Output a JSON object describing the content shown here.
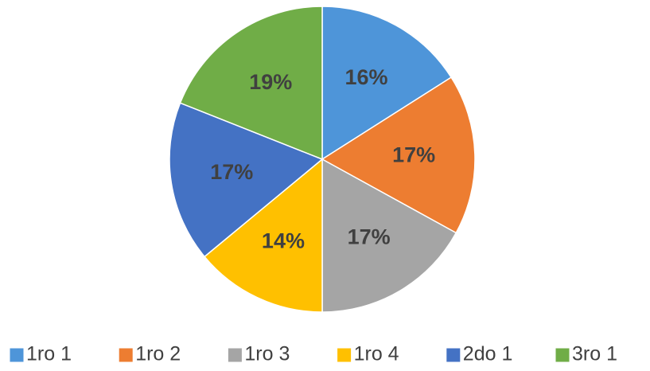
{
  "chart_data": {
    "type": "pie",
    "categories": [
      "1ro 1",
      "1ro 2",
      "1ro 3",
      "1ro 4",
      "2do 1",
      "3ro 1"
    ],
    "values": [
      16,
      17,
      17,
      14,
      17,
      19
    ],
    "value_labels": [
      "16%",
      "17%",
      "17%",
      "14%",
      "17%",
      "19%"
    ],
    "colors": [
      "#4e95d9",
      "#ed7d31",
      "#a5a5a5",
      "#ffc000",
      "#4472c4",
      "#70ad47"
    ],
    "legend": "bottom"
  }
}
